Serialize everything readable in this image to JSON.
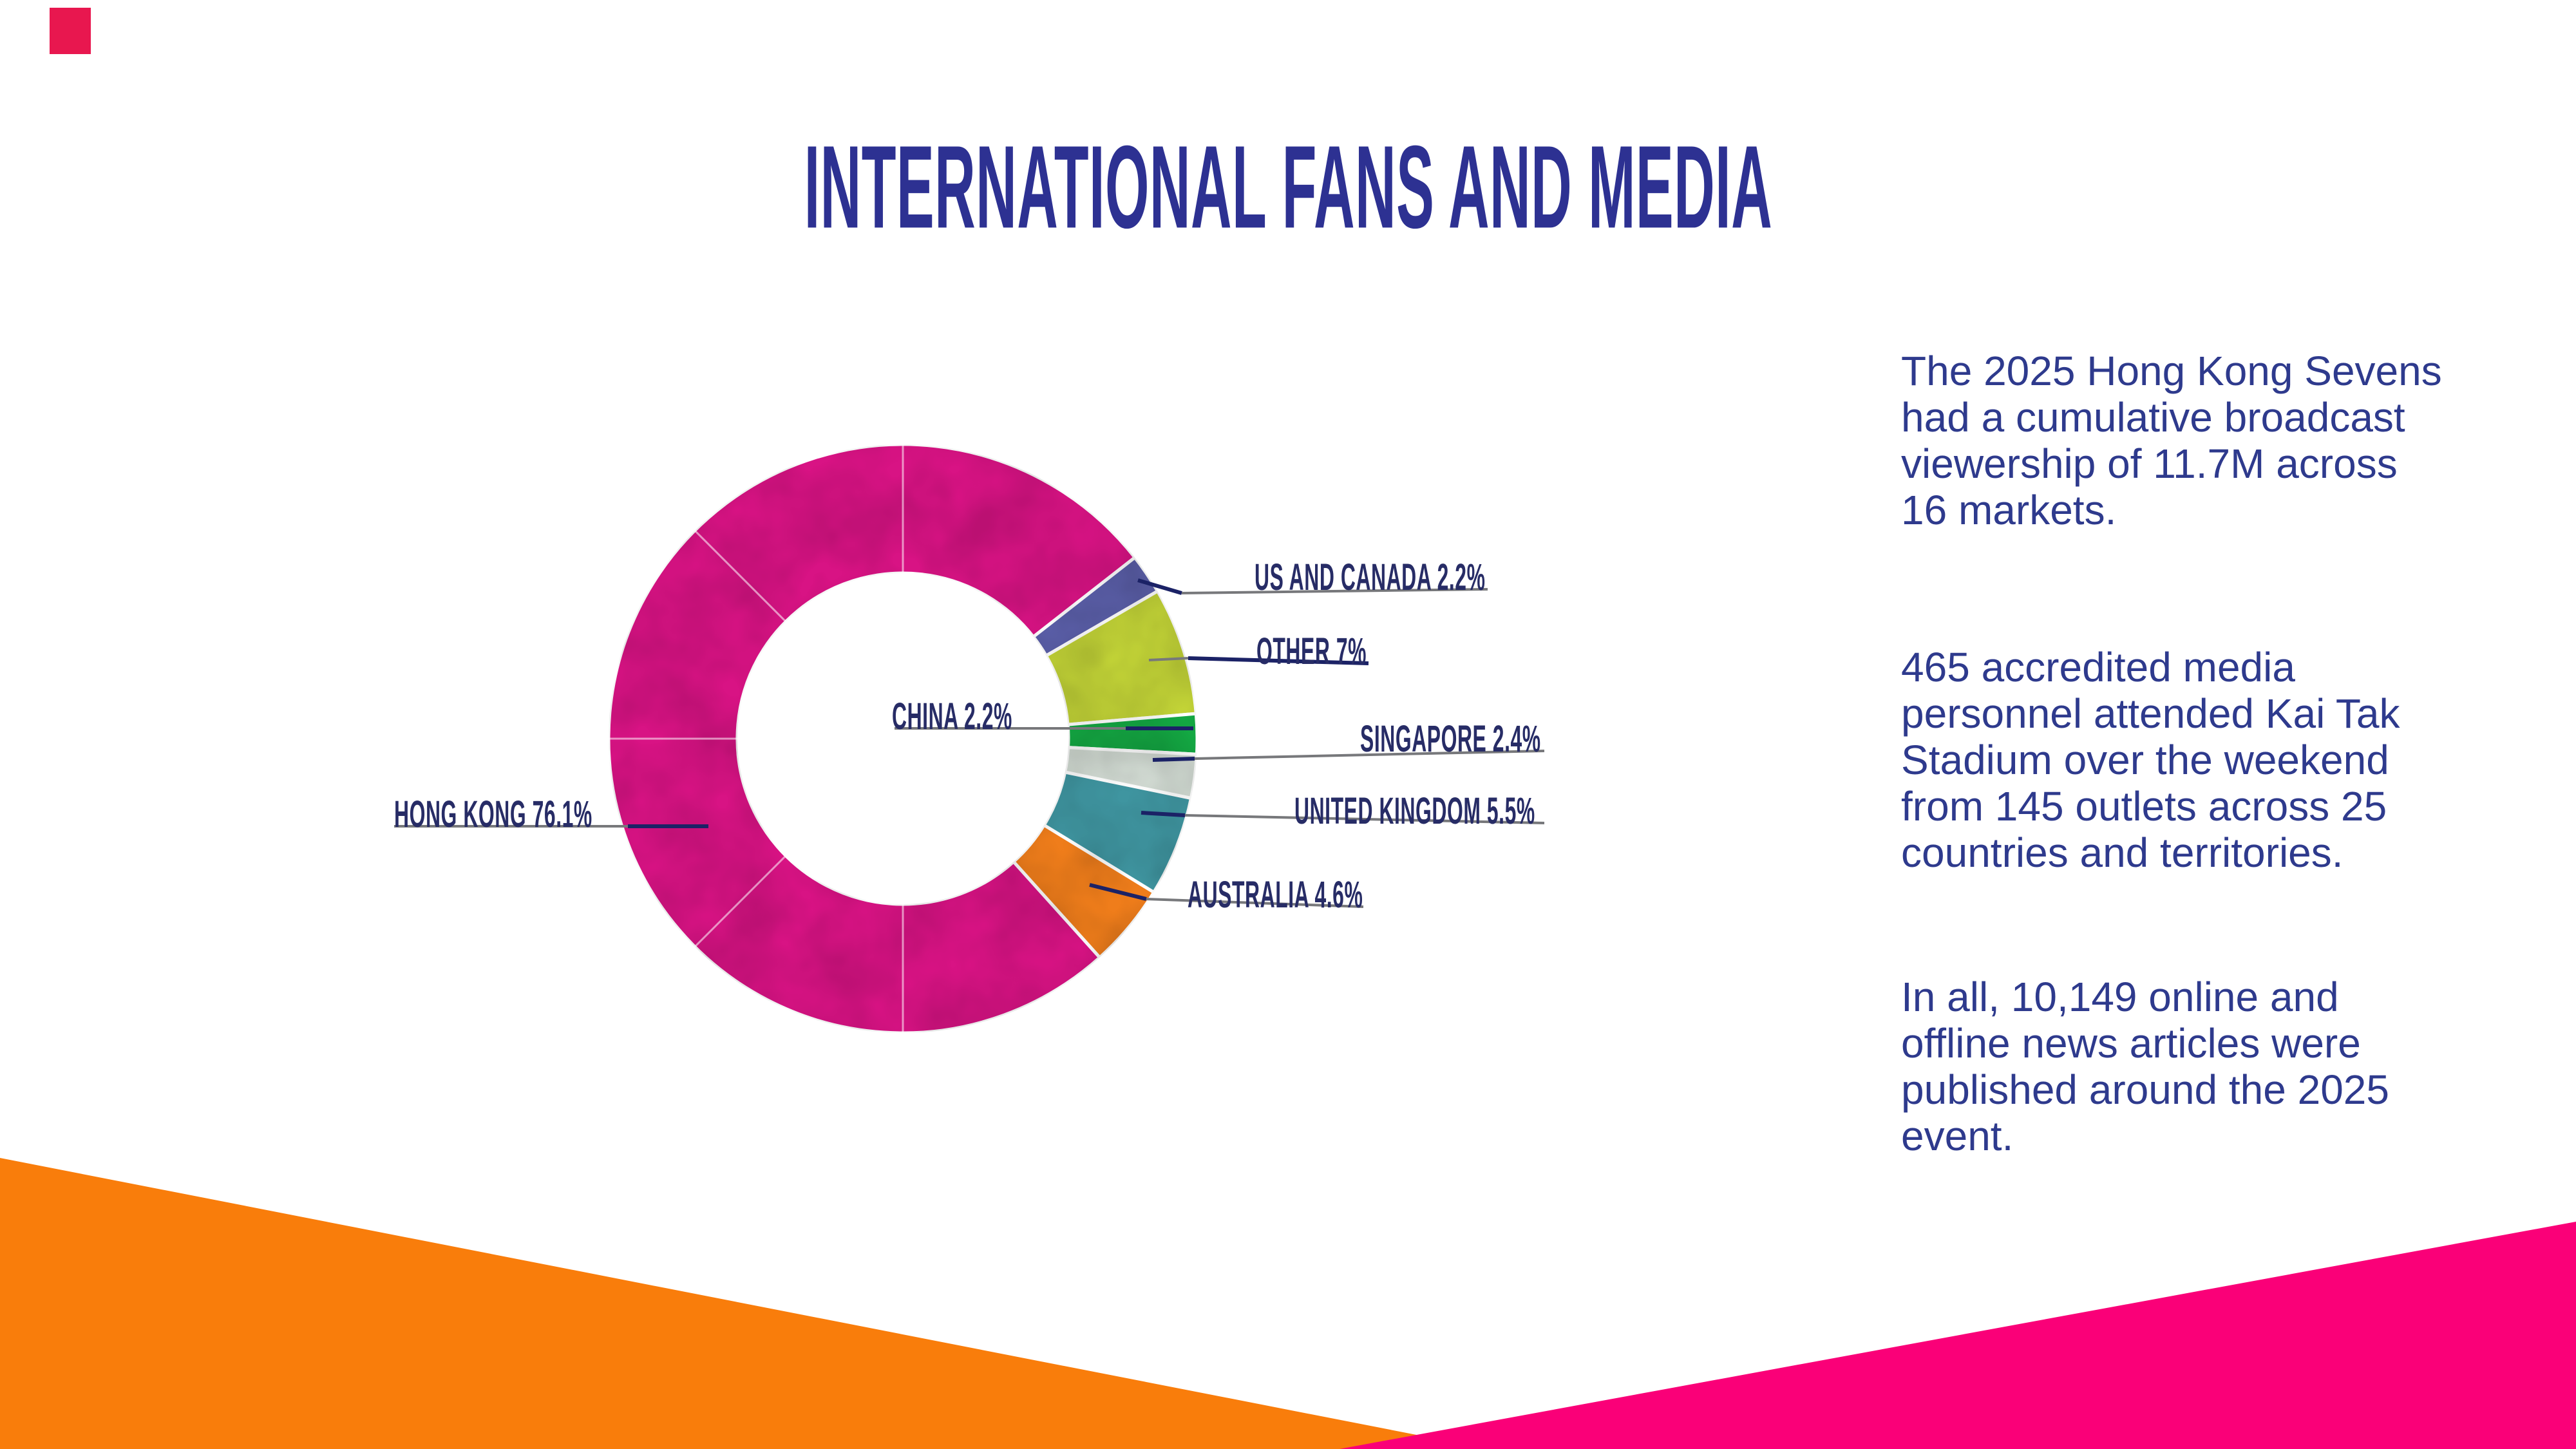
{
  "slide": {
    "title": "INTERNATIONAL FANS AND MEDIA",
    "paragraphs": [
      {
        "id": "broadcast",
        "text": "The 2025 Hong Kong Sevens\nhad a cumulative broadcast\nviewership of 11.7M across\n16 markets."
      },
      {
        "id": "media",
        "text": "465 accredited media\npersonnel attended Kai Tak\nStadium over the weekend\nfrom 145 outlets across 25\ncountries and territories."
      },
      {
        "id": "articles",
        "text": "In all, 10,149 online and\noffline news articles were\npublished around the 2025\nevent."
      }
    ],
    "colors": {
      "background": "#ffffff",
      "title": "#2d3192",
      "body-text": "#2e3a8d",
      "label-text": "#272c66",
      "leader-gray": "#77787b",
      "leader-navy": "#1b2266",
      "shape-orange": "#f97d0b",
      "shape-pink": "#fa0078",
      "corner-mark": "#e8174f"
    }
  },
  "chart_data": {
    "type": "pie",
    "subtype": "donut",
    "title": "",
    "unit": "percent",
    "legend": "none",
    "start_offset_deg": 52,
    "inner_radius_ratio": 0.56,
    "label_format": "{label} {value}%",
    "segments": [
      {
        "label": "US AND CANADA",
        "value": 2.2,
        "color": "#5b5fa9"
      },
      {
        "label": "OTHER",
        "value": 7,
        "color": "#c2d337"
      },
      {
        "label": "CHINA",
        "value": 2.2,
        "color": "#14a843"
      },
      {
        "label": "SINGAPORE",
        "value": 2.4,
        "color": "#d3dcd4"
      },
      {
        "label": "UNITED KINGDOM",
        "value": 5.5,
        "color": "#3f95a0"
      },
      {
        "label": "AUSTRALIA",
        "value": 4.6,
        "color": "#ef7d1b"
      },
      {
        "label": "HONG KONG",
        "value": 76.1,
        "color": "#d81384"
      }
    ]
  }
}
